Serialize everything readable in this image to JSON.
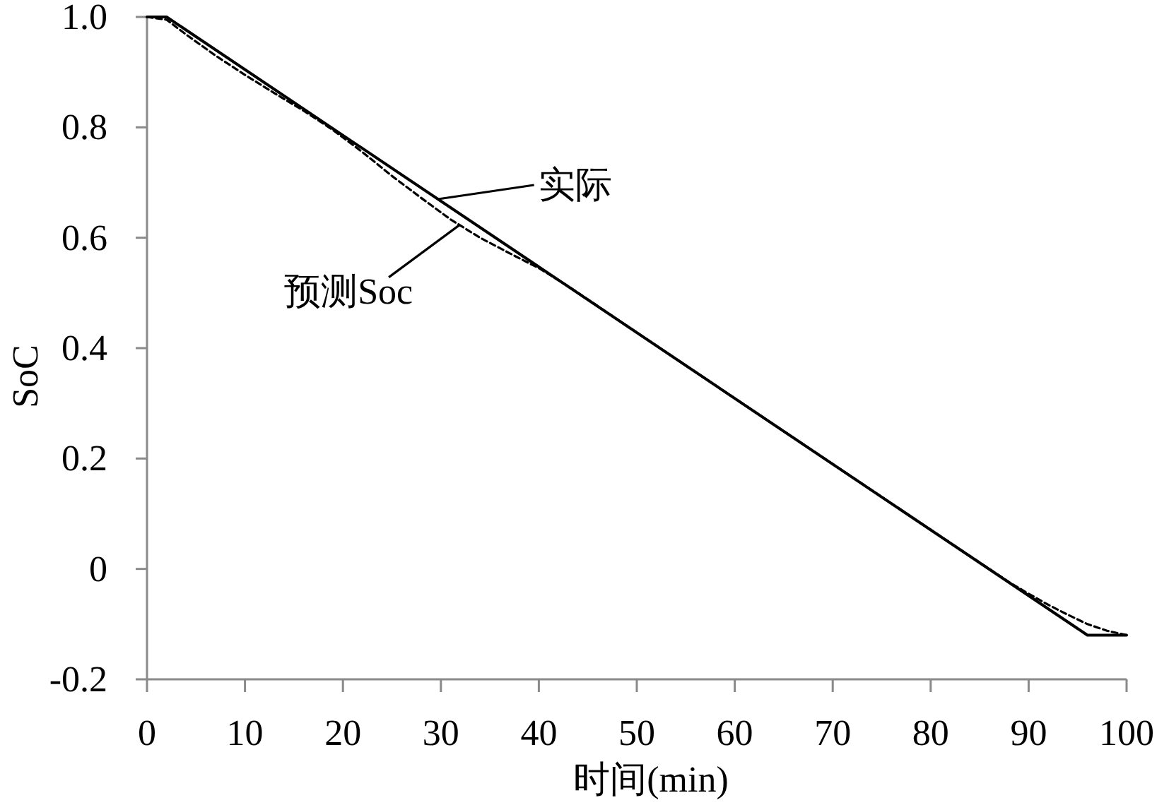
{
  "chart_data": {
    "type": "line",
    "xlabel": "时间(min)",
    "ylabel": "SoC",
    "xlim": [
      0,
      100
    ],
    "xticks": [
      0,
      10,
      20,
      30,
      40,
      50,
      60,
      70,
      80,
      90,
      100
    ],
    "ylim": [
      -0.2,
      1
    ],
    "yticks": [
      -0.2,
      0,
      0.2,
      0.4,
      0.6,
      0.8,
      {
        "value": 1,
        "label": "1.0"
      }
    ],
    "series": [
      {
        "name": "实际",
        "color": "#000000",
        "line_style": "solid",
        "x": [
          0,
          2,
          96,
          100
        ],
        "values": [
          1,
          1,
          -0.12,
          -0.12
        ]
      },
      {
        "name": "预测Soc",
        "color": "#000000",
        "line_style": "dashed",
        "x": [
          0,
          2,
          4,
          7,
          10,
          13,
          16,
          19,
          22,
          25,
          28,
          31,
          34,
          37,
          40,
          43,
          60,
          80,
          88,
          90,
          92,
          94,
          96,
          98,
          100
        ],
        "values": [
          1,
          0.995,
          0.968,
          0.93,
          0.895,
          0.862,
          0.83,
          0.795,
          0.755,
          0.712,
          0.672,
          0.633,
          0.6,
          0.572,
          0.545,
          0.512,
          0.309,
          0.071,
          -0.024,
          -0.045,
          -0.065,
          -0.083,
          -0.1,
          -0.112,
          -0.12
        ]
      }
    ]
  }
}
